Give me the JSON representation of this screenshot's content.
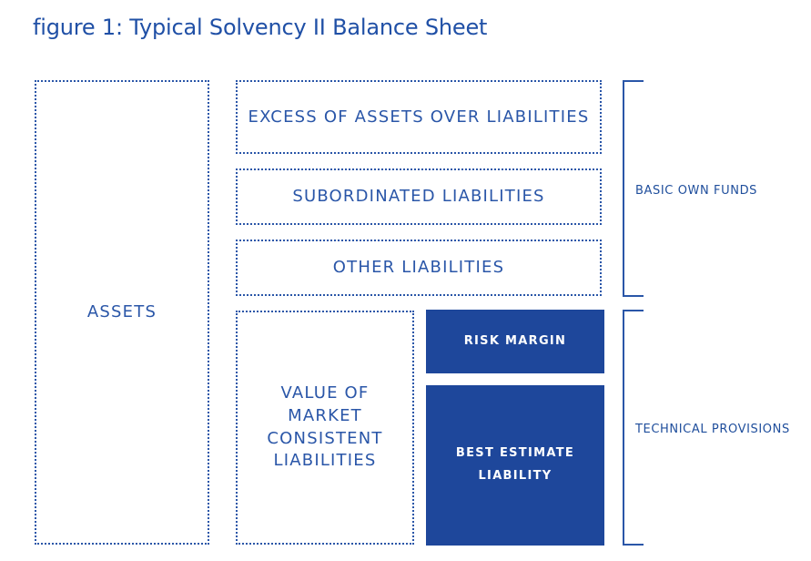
{
  "title": "figure 1: Typical Solvency II Balance Sheet",
  "boxes": {
    "assets": "ASSETS",
    "excess": "EXCESS OF ASSETS OVER LIABILITIES",
    "subordinated": "SUBORDINATED LIABILITIES",
    "other": "OTHER LIABILITIES",
    "value_market": "VALUE OF\nMARKET\nCONSISTENT\nLIABILITIES",
    "risk_margin": "RISK MARGIN",
    "best_estimate": "BEST ESTIMATE\nLIABILITY"
  },
  "brackets": {
    "basic_own_funds": "BASIC OWN FUNDS",
    "technical_provisions": "TECHNICAL PROVISIONS"
  },
  "colors": {
    "primary": "#2a56a8",
    "solid_fill": "#1e479b"
  }
}
